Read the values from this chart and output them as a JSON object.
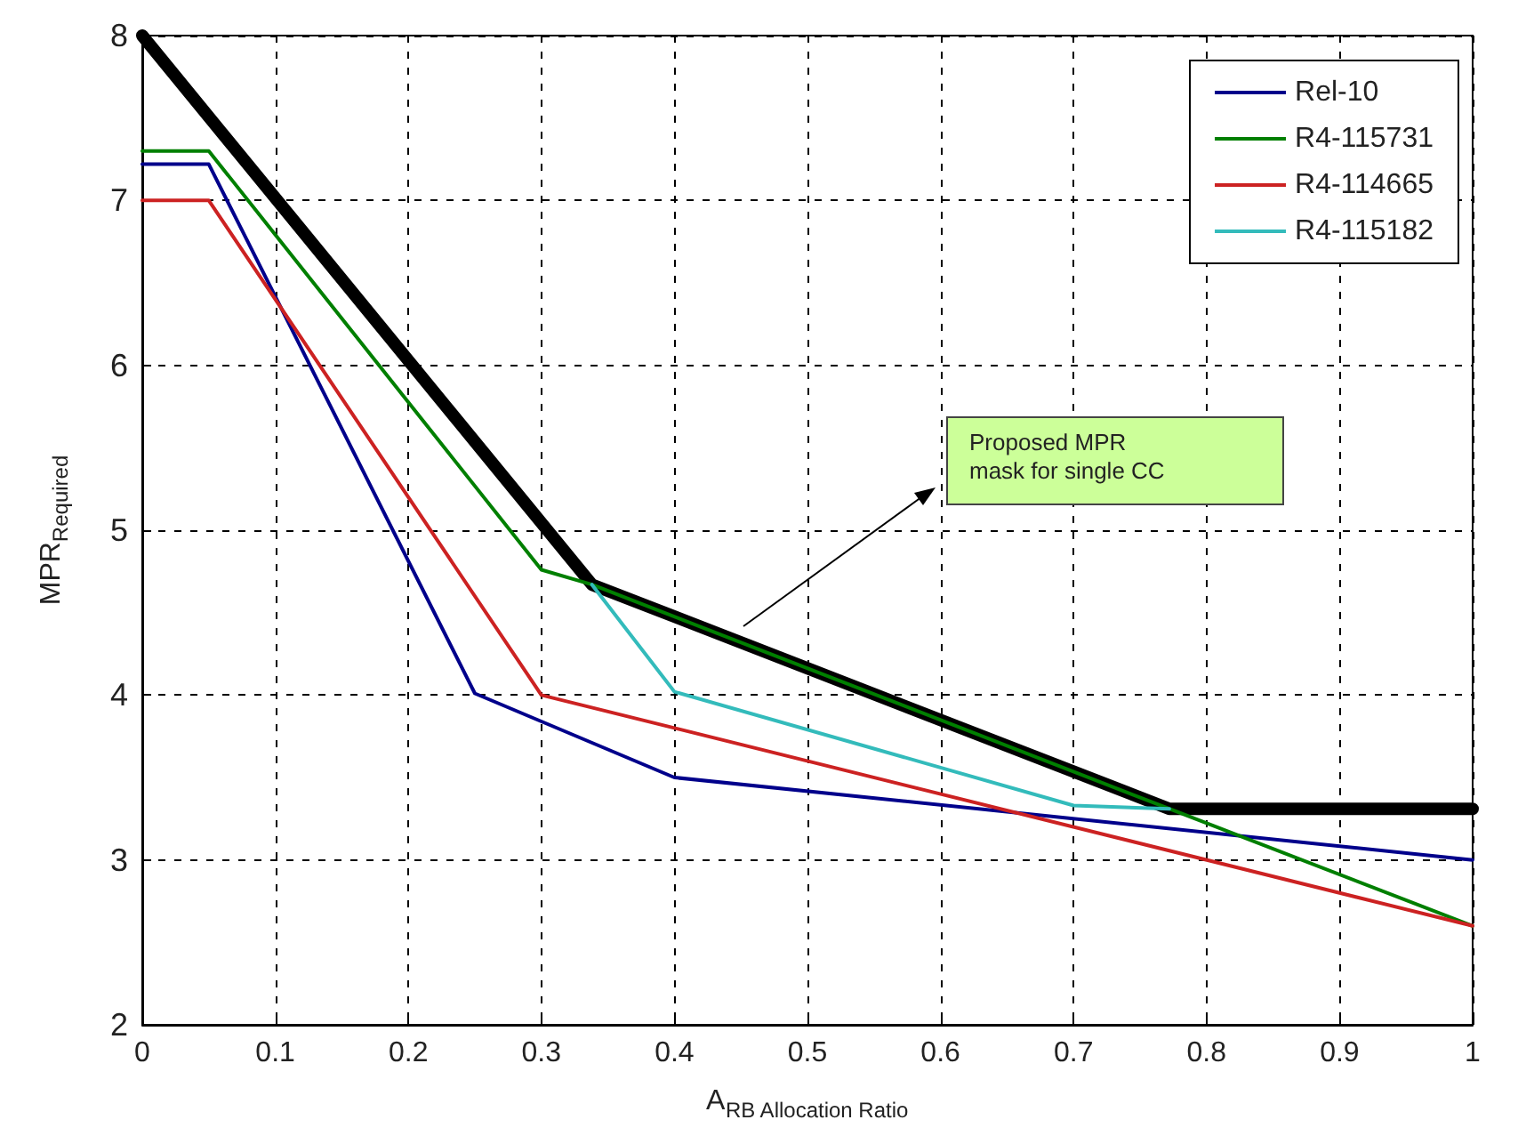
{
  "chart_data": {
    "type": "line",
    "xlabel": "A$_{RB Allocation Ratio}$",
    "ylabel": "MPR$_{Required}$",
    "xlim": [
      0,
      1
    ],
    "xticks": [
      0,
      0.1,
      0.2,
      0.3,
      0.4,
      0.5,
      0.6,
      0.7,
      0.8,
      0.9,
      1
    ],
    "ylim": [
      2,
      8
    ],
    "yticks": [
      2,
      3,
      4,
      5,
      6,
      7,
      8
    ],
    "grid": true,
    "legend": "top right",
    "marker": "none",
    "line_style": "solid",
    "series": [
      {
        "name": "Rel-10",
        "color": "#00008b",
        "x": [
          0,
          0.05,
          0.25,
          0.4,
          1
        ],
        "values": [
          7.22,
          7.22,
          4.01,
          3.5,
          3.0
        ]
      },
      {
        "name": "R4-115731",
        "color": "#007f00",
        "x": [
          0,
          0.05,
          0.3,
          0.338,
          0.772,
          1
        ],
        "values": [
          7.3,
          7.3,
          4.76,
          4.67,
          3.31,
          2.6
        ]
      },
      {
        "name": "R4-114665",
        "color": "#cc2222",
        "x": [
          0,
          0.05,
          0.3,
          0.4,
          1
        ],
        "values": [
          7.0,
          7.0,
          4.0,
          3.8,
          2.6
        ]
      },
      {
        "name": "R4-115182",
        "color": "#33bbbb",
        "x": [
          0.338,
          0.4,
          0.7,
          0.772
        ],
        "values": [
          4.67,
          4.02,
          3.33,
          3.31
        ]
      },
      {
        "color": "#000000",
        "x": [
          0,
          0.338,
          0.772,
          1
        ],
        "values": [
          8,
          4.67,
          3.31,
          3.31
        ]
      }
    ],
    "annotations": [
      "Proposed MPR\nmask for single CC"
    ]
  }
}
